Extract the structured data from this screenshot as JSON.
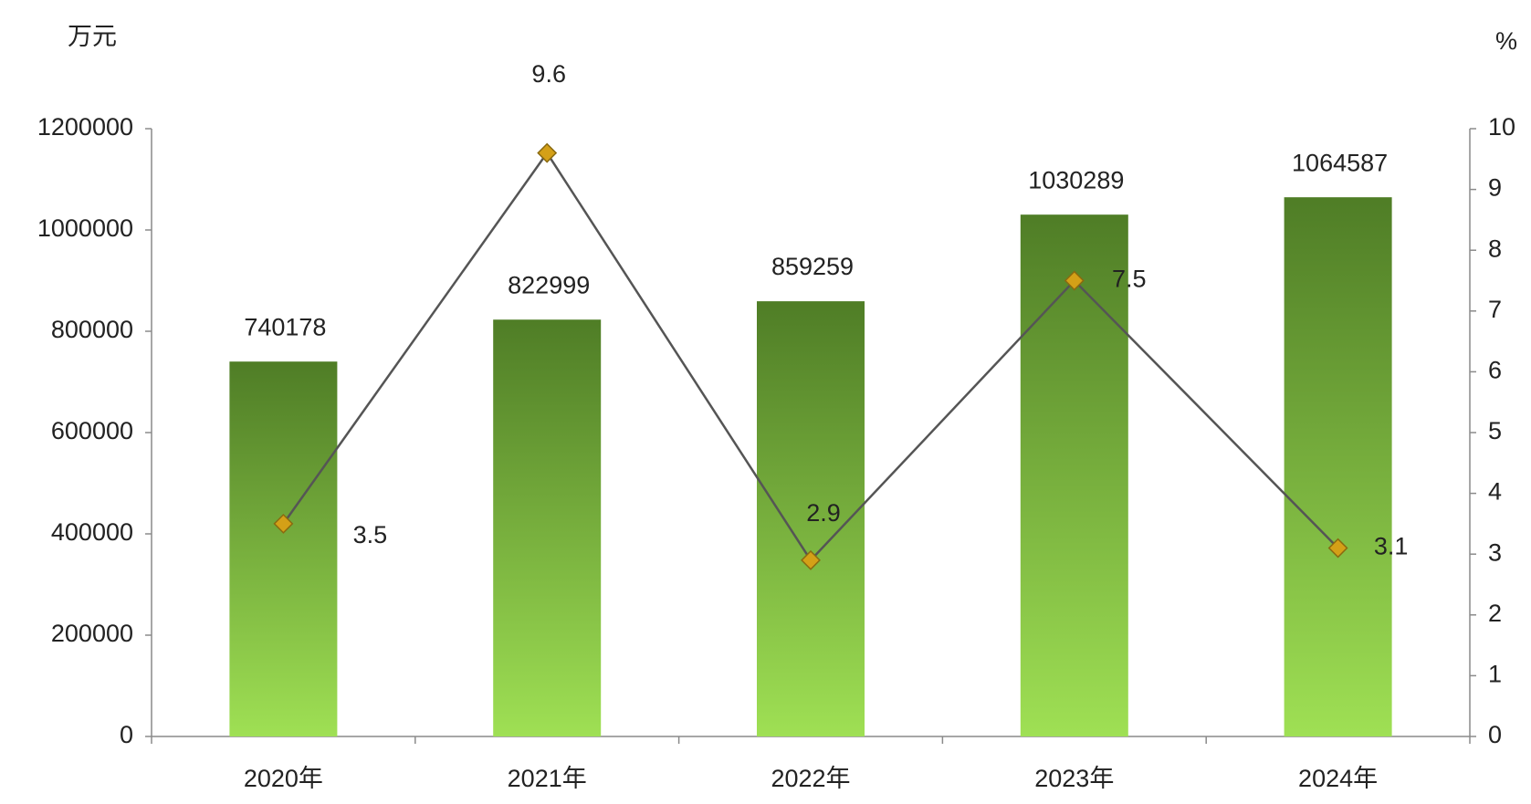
{
  "chart_data": {
    "type": "bar",
    "y_label": "万元",
    "y2_label": "%",
    "categories": [
      "2020年",
      "2021年",
      "2022年",
      "2023年",
      "2024年"
    ],
    "ylim": [
      0,
      1200000
    ],
    "yticks": [
      0,
      200000,
      400000,
      600000,
      800000,
      1000000,
      1200000
    ],
    "y2lim": [
      0,
      10
    ],
    "y2ticks": [
      0,
      1,
      2,
      3,
      4,
      5,
      6,
      7,
      8,
      9,
      10
    ],
    "series": [
      {
        "type": "bar",
        "gradient": [
          "#4f7d26",
          "#9fe054"
        ],
        "values": [
          740178,
          822999,
          859259,
          1030289,
          1064587
        ]
      },
      {
        "type": "line",
        "axis": "y2",
        "color": "#555555",
        "marker_color": "#d4a017",
        "values": [
          3.5,
          9.6,
          2.9,
          7.5,
          3.1
        ]
      }
    ]
  }
}
